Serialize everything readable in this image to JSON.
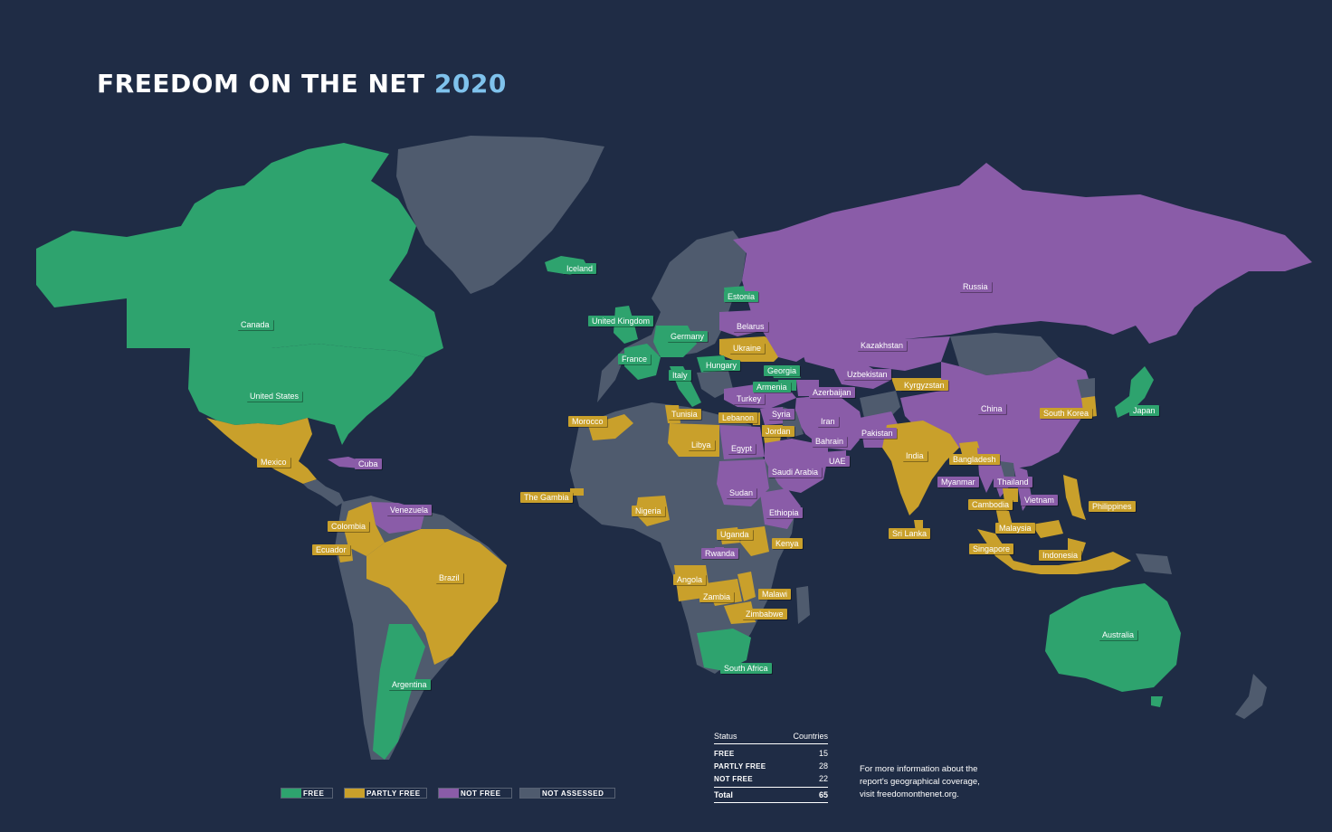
{
  "title": {
    "main": "FREEDOM ON THE NET",
    "year": "2020"
  },
  "colors": {
    "free": "#2ea36e",
    "partly_free": "#c9a02b",
    "not_free": "#8a5ca8",
    "not_assessed": "#4f5b6e",
    "background": "#1f2c45",
    "year_accent": "#7fc2ec"
  },
  "legend": [
    {
      "key": "free",
      "label": "FREE"
    },
    {
      "key": "partly_free",
      "label": "PARTLY FREE"
    },
    {
      "key": "not_free",
      "label": "NOT FREE"
    },
    {
      "key": "not_assessed",
      "label": "NOT ASSESSED"
    }
  ],
  "countries": [
    {
      "name": "Iceland",
      "status": "free"
    },
    {
      "name": "Canada",
      "status": "free"
    },
    {
      "name": "United States",
      "status": "free"
    },
    {
      "name": "Mexico",
      "status": "partly_free"
    },
    {
      "name": "Cuba",
      "status": "not_free"
    },
    {
      "name": "Venezuela",
      "status": "not_free"
    },
    {
      "name": "Colombia",
      "status": "partly_free"
    },
    {
      "name": "Ecuador",
      "status": "partly_free"
    },
    {
      "name": "Brazil",
      "status": "partly_free"
    },
    {
      "name": "Argentina",
      "status": "free"
    },
    {
      "name": "United Kingdom",
      "status": "free"
    },
    {
      "name": "France",
      "status": "free"
    },
    {
      "name": "Germany",
      "status": "free"
    },
    {
      "name": "Italy",
      "status": "free"
    },
    {
      "name": "Estonia",
      "status": "free"
    },
    {
      "name": "Belarus",
      "status": "not_free"
    },
    {
      "name": "Ukraine",
      "status": "partly_free"
    },
    {
      "name": "Hungary",
      "status": "free"
    },
    {
      "name": "Georgia",
      "status": "free"
    },
    {
      "name": "Armenia",
      "status": "free"
    },
    {
      "name": "Azerbaijan",
      "status": "not_free"
    },
    {
      "name": "Turkey",
      "status": "not_free"
    },
    {
      "name": "Morocco",
      "status": "partly_free"
    },
    {
      "name": "Tunisia",
      "status": "partly_free"
    },
    {
      "name": "Libya",
      "status": "partly_free"
    },
    {
      "name": "Egypt",
      "status": "not_free"
    },
    {
      "name": "Lebanon",
      "status": "partly_free"
    },
    {
      "name": "Syria",
      "status": "not_free"
    },
    {
      "name": "Jordan",
      "status": "partly_free"
    },
    {
      "name": "Saudi Arabia",
      "status": "not_free"
    },
    {
      "name": "Bahrain",
      "status": "not_free"
    },
    {
      "name": "UAE",
      "status": "not_free"
    },
    {
      "name": "Iran",
      "status": "not_free"
    },
    {
      "name": "Russia",
      "status": "not_free"
    },
    {
      "name": "Kazakhstan",
      "status": "not_free"
    },
    {
      "name": "Uzbekistan",
      "status": "not_free"
    },
    {
      "name": "Kyrgyzstan",
      "status": "partly_free"
    },
    {
      "name": "Pakistan",
      "status": "not_free"
    },
    {
      "name": "India",
      "status": "partly_free"
    },
    {
      "name": "Sri Lanka",
      "status": "partly_free"
    },
    {
      "name": "Bangladesh",
      "status": "partly_free"
    },
    {
      "name": "Myanmar",
      "status": "not_free"
    },
    {
      "name": "Thailand",
      "status": "not_free"
    },
    {
      "name": "Cambodia",
      "status": "partly_free"
    },
    {
      "name": "Vietnam",
      "status": "not_free"
    },
    {
      "name": "Malaysia",
      "status": "partly_free"
    },
    {
      "name": "Singapore",
      "status": "partly_free"
    },
    {
      "name": "Indonesia",
      "status": "partly_free"
    },
    {
      "name": "Philippines",
      "status": "partly_free"
    },
    {
      "name": "China",
      "status": "not_free"
    },
    {
      "name": "South Korea",
      "status": "partly_free"
    },
    {
      "name": "Japan",
      "status": "free"
    },
    {
      "name": "Australia",
      "status": "free"
    },
    {
      "name": "The Gambia",
      "status": "partly_free"
    },
    {
      "name": "Nigeria",
      "status": "partly_free"
    },
    {
      "name": "Sudan",
      "status": "not_free"
    },
    {
      "name": "Ethiopia",
      "status": "not_free"
    },
    {
      "name": "Uganda",
      "status": "partly_free"
    },
    {
      "name": "Kenya",
      "status": "partly_free"
    },
    {
      "name": "Rwanda",
      "status": "not_free"
    },
    {
      "name": "Angola",
      "status": "partly_free"
    },
    {
      "name": "Zambia",
      "status": "partly_free"
    },
    {
      "name": "Malawi",
      "status": "partly_free"
    },
    {
      "name": "Zimbabwe",
      "status": "partly_free"
    },
    {
      "name": "South Africa",
      "status": "free"
    }
  ],
  "stats": {
    "header_status": "Status",
    "header_countries": "Countries",
    "rows": [
      {
        "label": "FREE",
        "count": "15"
      },
      {
        "label": "PARTLY FREE",
        "count": "28"
      },
      {
        "label": "NOT FREE",
        "count": "22"
      }
    ],
    "total_label": "Total",
    "total_count": "65"
  },
  "info": {
    "line1": "For more information about the",
    "line2": "report's geographical coverage,",
    "line3": "visit freedomonthenet.org."
  }
}
